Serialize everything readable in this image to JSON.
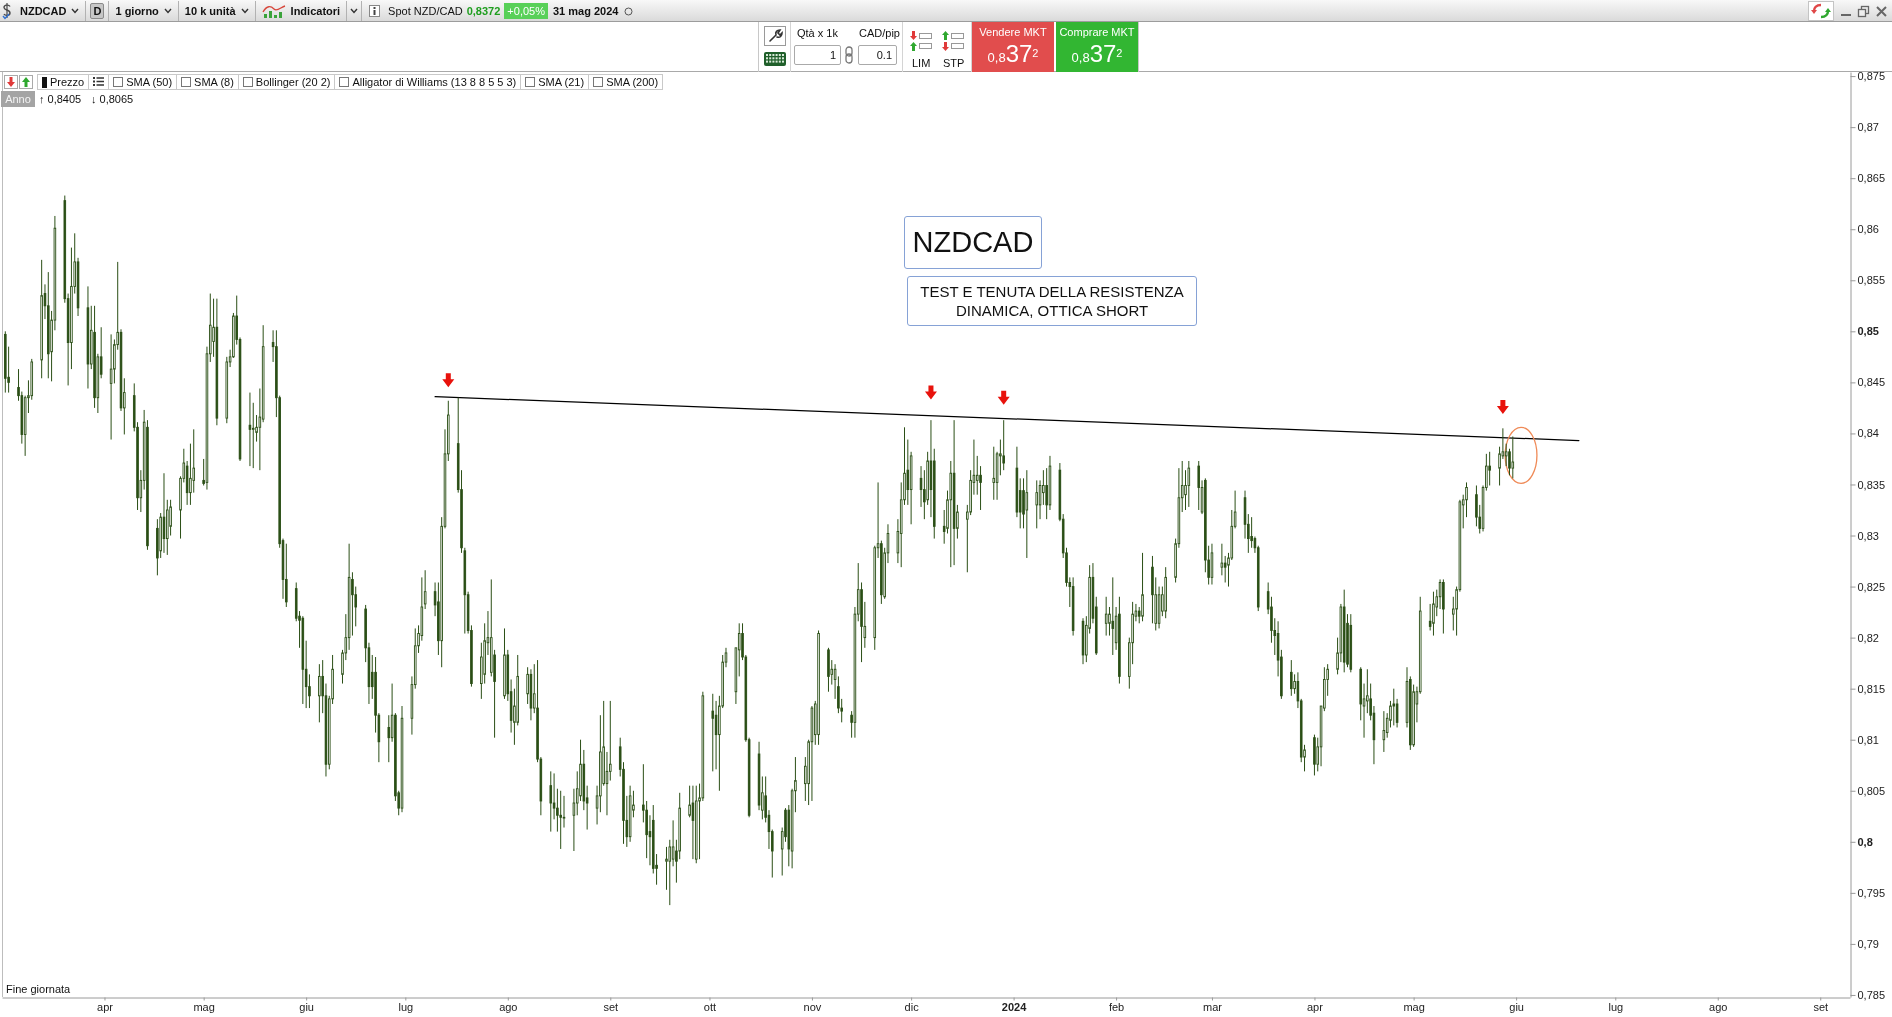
{
  "chart_data": {
    "type": "candlestick",
    "title": "NZDCAD",
    "color": "#2b4f16",
    "annotations": [
      "NZDCAD",
      "D",
      "1 giorno",
      "10 k unità",
      "Indicatori",
      "Spot NZD/CAD",
      "0,8372",
      "+0,05%",
      "31 mag 2024",
      "Qtà x 1k",
      "CAD/pip",
      "1",
      "0.1",
      "LIM",
      "STP",
      "Vendere MKT",
      "0,837$^{2}$",
      "Comprare MKT",
      "0,837$^{2}$",
      "Prezzo",
      "SMA (50)",
      "SMA (8)",
      "Bollinger (20 2)",
      "Alligator di Williams (13 8 8 5 5 3)",
      "SMA (21)",
      "SMA (200)",
      "Anno",
      "↑ 0,8405",
      "↓ 0,8065",
      "TEST E TENUTA DELLA RESISTENZA DINAMICA, OTTICA SHORT",
      "Fine giornata"
    ],
    "x": [
      "2023-03-02",
      "2023-03-03",
      "2023-03-06",
      "2023-03-07",
      "2023-03-08",
      "2023-03-09",
      "2023-03-10",
      "2023-03-13",
      "2023-03-14",
      "2023-03-15",
      "2023-03-16",
      "2023-03-17",
      "2023-03-20",
      "2023-03-21",
      "2023-03-22",
      "2023-03-23",
      "2023-03-24",
      "2023-03-27",
      "2023-03-28",
      "2023-03-29",
      "2023-03-30",
      "2023-03-31",
      "2023-04-03",
      "2023-04-04",
      "2023-04-05",
      "2023-04-06",
      "2023-04-07",
      "2023-04-10",
      "2023-04-11",
      "2023-04-12",
      "2023-04-13",
      "2023-04-14",
      "2023-04-17",
      "2023-04-18",
      "2023-04-19",
      "2023-04-20",
      "2023-04-21",
      "2023-04-24",
      "2023-04-25",
      "2023-04-26",
      "2023-04-27",
      "2023-04-28",
      "2023-05-01",
      "2023-05-02",
      "2023-05-03",
      "2023-05-04",
      "2023-05-05",
      "2023-05-08",
      "2023-05-09",
      "2023-05-10",
      "2023-05-11",
      "2023-05-12",
      "2023-05-15",
      "2023-05-16",
      "2023-05-17",
      "2023-05-18",
      "2023-05-19",
      "2023-05-22",
      "2023-05-23",
      "2023-05-24",
      "2023-05-25",
      "2023-05-26",
      "2023-05-29",
      "2023-05-30",
      "2023-05-31",
      "2023-06-01",
      "2023-06-02",
      "2023-06-05",
      "2023-06-06",
      "2023-06-07",
      "2023-06-08",
      "2023-06-09",
      "2023-06-12",
      "2023-06-13",
      "2023-06-14",
      "2023-06-15",
      "2023-06-16",
      "2023-06-19",
      "2023-06-20",
      "2023-06-21",
      "2023-06-22",
      "2023-06-23",
      "2023-06-26",
      "2023-06-27",
      "2023-06-28",
      "2023-06-29",
      "2023-06-30",
      "2023-07-03",
      "2023-07-04",
      "2023-07-05",
      "2023-07-06",
      "2023-07-07",
      "2023-07-10",
      "2023-07-11",
      "2023-07-12",
      "2023-07-13",
      "2023-07-14",
      "2023-07-17",
      "2023-07-18",
      "2023-07-19",
      "2023-07-20",
      "2023-07-21",
      "2023-07-24",
      "2023-07-25",
      "2023-07-26",
      "2023-07-27",
      "2023-07-28",
      "2023-07-31",
      "2023-08-01",
      "2023-08-02",
      "2023-08-03",
      "2023-08-04",
      "2023-08-07",
      "2023-08-08",
      "2023-08-09",
      "2023-08-10",
      "2023-08-11",
      "2023-08-14",
      "2023-08-15",
      "2023-08-16",
      "2023-08-17",
      "2023-08-18",
      "2023-08-21",
      "2023-08-22",
      "2023-08-23",
      "2023-08-24",
      "2023-08-25",
      "2023-08-28",
      "2023-08-29",
      "2023-08-30",
      "2023-08-31",
      "2023-09-01",
      "2023-09-04",
      "2023-09-05",
      "2023-09-06",
      "2023-09-07",
      "2023-09-08",
      "2023-09-11",
      "2023-09-12",
      "2023-09-13",
      "2023-09-14",
      "2023-09-15",
      "2023-09-18",
      "2023-09-19",
      "2023-09-20",
      "2023-09-21",
      "2023-09-22",
      "2023-09-25",
      "2023-09-26",
      "2023-09-27",
      "2023-09-28",
      "2023-09-29",
      "2023-10-02",
      "2023-10-03",
      "2023-10-04",
      "2023-10-05",
      "2023-10-06",
      "2023-10-09",
      "2023-10-10",
      "2023-10-11",
      "2023-10-12",
      "2023-10-13",
      "2023-10-16",
      "2023-10-17",
      "2023-10-18",
      "2023-10-19",
      "2023-10-20",
      "2023-10-23",
      "2023-10-24",
      "2023-10-25",
      "2023-10-26",
      "2023-10-27",
      "2023-10-30",
      "2023-10-31",
      "2023-11-01",
      "2023-11-02",
      "2023-11-03",
      "2023-11-06",
      "2023-11-07",
      "2023-11-08",
      "2023-11-09",
      "2023-11-10",
      "2023-11-13",
      "2023-11-14",
      "2023-11-15",
      "2023-11-16",
      "2023-11-17",
      "2023-11-20",
      "2023-11-21",
      "2023-11-22",
      "2023-11-23",
      "2023-11-24",
      "2023-11-27",
      "2023-11-28",
      "2023-11-29",
      "2023-11-30",
      "2023-12-01",
      "2023-12-04",
      "2023-12-05",
      "2023-12-06",
      "2023-12-07",
      "2023-12-08",
      "2023-12-11",
      "2023-12-12",
      "2023-12-13",
      "2023-12-14",
      "2023-12-15",
      "2023-12-18",
      "2023-12-19",
      "2023-12-20",
      "2023-12-21",
      "2023-12-22",
      "2023-12-26",
      "2023-12-27",
      "2023-12-28",
      "2023-12-29",
      "2024-01-02",
      "2024-01-03",
      "2024-01-04",
      "2024-01-05",
      "2024-01-08",
      "2024-01-09",
      "2024-01-10",
      "2024-01-11",
      "2024-01-12",
      "2024-01-15",
      "2024-01-16",
      "2024-01-17",
      "2024-01-18",
      "2024-01-19",
      "2024-01-22",
      "2024-01-23",
      "2024-01-24",
      "2024-01-25",
      "2024-01-26",
      "2024-01-29",
      "2024-01-30",
      "2024-01-31",
      "2024-02-01",
      "2024-02-02",
      "2024-02-05",
      "2024-02-06",
      "2024-02-07",
      "2024-02-08",
      "2024-02-09",
      "2024-02-12",
      "2024-02-13",
      "2024-02-14",
      "2024-02-15",
      "2024-02-16",
      "2024-02-19",
      "2024-02-20",
      "2024-02-21",
      "2024-02-22",
      "2024-02-23",
      "2024-02-26",
      "2024-02-27",
      "2024-02-28",
      "2024-02-29",
      "2024-03-01",
      "2024-03-04",
      "2024-03-05",
      "2024-03-06",
      "2024-03-07",
      "2024-03-08",
      "2024-03-11",
      "2024-03-12",
      "2024-03-13",
      "2024-03-14",
      "2024-03-15",
      "2024-03-18",
      "2024-03-19",
      "2024-03-20",
      "2024-03-21",
      "2024-03-22",
      "2024-03-25",
      "2024-03-26",
      "2024-03-27",
      "2024-03-28",
      "2024-03-29",
      "2024-04-01",
      "2024-04-02",
      "2024-04-03",
      "2024-04-04",
      "2024-04-05",
      "2024-04-08",
      "2024-04-09",
      "2024-04-10",
      "2024-04-11",
      "2024-04-12",
      "2024-04-15",
      "2024-04-16",
      "2024-04-17",
      "2024-04-18",
      "2024-04-19",
      "2024-04-22",
      "2024-04-23",
      "2024-04-24",
      "2024-04-25",
      "2024-04-26",
      "2024-04-29",
      "2024-04-30",
      "2024-05-01",
      "2024-05-02",
      "2024-05-03",
      "2024-05-06",
      "2024-05-07",
      "2024-05-08",
      "2024-05-09",
      "2024-05-10",
      "2024-05-13",
      "2024-05-14",
      "2024-05-15",
      "2024-05-16",
      "2024-05-17",
      "2024-05-20",
      "2024-05-21",
      "2024-05-22",
      "2024-05-23",
      "2024-05-24",
      "2024-05-27",
      "2024-05-28",
      "2024-05-29",
      "2024-05-30",
      "2024-05-31"
    ],
    "ohlc": [
      [
        0.8497,
        0.85,
        0.844,
        0.8454
      ],
      [
        0.8455,
        0.8485,
        0.844,
        0.845
      ],
      [
        0.8445,
        0.8463,
        0.8432,
        0.8437
      ],
      [
        0.8437,
        0.8441,
        0.839,
        0.8399
      ],
      [
        0.8399,
        0.8437,
        0.8378,
        0.8435
      ],
      [
        0.8435,
        0.8452,
        0.842,
        0.8437
      ],
      [
        0.8437,
        0.8473,
        0.8433,
        0.847
      ],
      [
        0.8472,
        0.857,
        0.8454,
        0.8535
      ],
      [
        0.8537,
        0.8546,
        0.8512,
        0.8525
      ],
      [
        0.8525,
        0.8558,
        0.8454,
        0.8478
      ],
      [
        0.848,
        0.852,
        0.8451,
        0.8511
      ],
      [
        0.8511,
        0.8613,
        0.8501,
        0.8601
      ],
      [
        0.8628,
        0.8633,
        0.8528,
        0.8532
      ],
      [
        0.8532,
        0.8537,
        0.8447,
        0.8489
      ],
      [
        0.8489,
        0.8582,
        0.8463,
        0.8544
      ],
      [
        0.8544,
        0.8596,
        0.8537,
        0.8568
      ],
      [
        0.8568,
        0.8572,
        0.8515,
        0.8523
      ],
      [
        0.8523,
        0.8544,
        0.8444,
        0.8468
      ],
      [
        0.8468,
        0.8525,
        0.8463,
        0.8501
      ],
      [
        0.8499,
        0.8525,
        0.8425,
        0.8435
      ],
      [
        0.8435,
        0.8478,
        0.842,
        0.8475
      ],
      [
        0.8475,
        0.8504,
        0.8454,
        0.8458
      ],
      [
        0.8449,
        0.8497,
        0.8394,
        0.8463
      ],
      [
        0.8463,
        0.8492,
        0.8449,
        0.8487
      ],
      [
        0.8487,
        0.8568,
        0.8482,
        0.8499
      ],
      [
        0.8499,
        0.8502,
        0.8422,
        0.8425
      ],
      [
        0.8425,
        0.8454,
        0.8399,
        0.844
      ],
      [
        0.8437,
        0.8449,
        0.8402,
        0.8406
      ],
      [
        0.8406,
        0.8411,
        0.8325,
        0.8337
      ],
      [
        0.8337,
        0.8364,
        0.8323,
        0.8354
      ],
      [
        0.8354,
        0.8423,
        0.8345,
        0.8411
      ],
      [
        0.8406,
        0.8413,
        0.8286,
        0.829
      ],
      [
        0.8307,
        0.8316,
        0.8261,
        0.8278
      ],
      [
        0.8285,
        0.8322,
        0.8278,
        0.8318
      ],
      [
        0.8318,
        0.8361,
        0.8283,
        0.8297
      ],
      [
        0.8297,
        0.8335,
        0.8281,
        0.8325
      ],
      [
        0.8309,
        0.8335,
        0.83,
        0.8328
      ],
      [
        0.8325,
        0.8358,
        0.8297,
        0.8356
      ],
      [
        0.8356,
        0.8385,
        0.8352,
        0.8371
      ],
      [
        0.8368,
        0.8373,
        0.833,
        0.8342
      ],
      [
        0.8342,
        0.839,
        0.833,
        0.8356
      ],
      [
        0.8354,
        0.8404,
        0.8342,
        0.8366
      ],
      [
        0.8354,
        0.8375,
        0.8349,
        0.8351
      ],
      [
        0.8352,
        0.8485,
        0.8345,
        0.8478
      ],
      [
        0.8478,
        0.8537,
        0.847,
        0.8506
      ],
      [
        0.849,
        0.8532,
        0.8475,
        0.8504
      ],
      [
        0.8504,
        0.8532,
        0.8408,
        0.8415
      ],
      [
        0.8415,
        0.8475,
        0.841,
        0.847
      ],
      [
        0.847,
        0.8482,
        0.8465,
        0.8475
      ],
      [
        0.8475,
        0.8518,
        0.8474,
        0.8515
      ],
      [
        0.8515,
        0.8535,
        0.8487,
        0.8492
      ],
      [
        0.8492,
        0.8494,
        0.8373,
        0.8375
      ],
      [
        0.8408,
        0.844,
        0.8368,
        0.8404
      ],
      [
        0.8404,
        0.843,
        0.8366,
        0.8405
      ],
      [
        0.8401,
        0.8418,
        0.8392,
        0.8406
      ],
      [
        0.8406,
        0.8444,
        0.8364,
        0.8416
      ],
      [
        0.8414,
        0.8506,
        0.8411,
        0.8485
      ],
      [
        0.8489,
        0.8501,
        0.847,
        0.8485
      ],
      [
        0.8485,
        0.8501,
        0.8416,
        0.8435
      ],
      [
        0.8435,
        0.8437,
        0.8288,
        0.8292
      ],
      [
        0.8295,
        0.8297,
        0.8238,
        0.8257
      ],
      [
        0.8257,
        0.8292,
        0.823,
        0.8235
      ],
      [
        0.8248,
        0.8254,
        0.8216,
        0.8219
      ],
      [
        0.8221,
        0.8226,
        0.819,
        0.8217
      ],
      [
        0.8219,
        0.8221,
        0.8135,
        0.8169
      ],
      [
        0.8169,
        0.8197,
        0.8131,
        0.8152
      ],
      [
        0.8152,
        0.8164,
        0.8131,
        0.8143
      ],
      [
        0.8143,
        0.8174,
        0.8117,
        0.8162
      ],
      [
        0.8162,
        0.8178,
        0.8126,
        0.8143
      ],
      [
        0.8143,
        0.8155,
        0.8064,
        0.8076
      ],
      [
        0.8076,
        0.8143,
        0.8071,
        0.814
      ],
      [
        0.814,
        0.8183,
        0.8135,
        0.8169
      ],
      [
        0.8164,
        0.8188,
        0.8155,
        0.8185
      ],
      [
        0.8185,
        0.8223,
        0.8178,
        0.82
      ],
      [
        0.82,
        0.8292,
        0.8188,
        0.8259
      ],
      [
        0.8257,
        0.8264,
        0.8202,
        0.8242
      ],
      [
        0.8242,
        0.825,
        0.8211,
        0.823
      ],
      [
        0.8228,
        0.8232,
        0.8176,
        0.819
      ],
      [
        0.819,
        0.8195,
        0.8135,
        0.8152
      ],
      [
        0.8166,
        0.8183,
        0.814,
        0.8152
      ],
      [
        0.8166,
        0.8181,
        0.8107,
        0.8124
      ],
      [
        0.8124,
        0.8126,
        0.8078,
        0.8098
      ],
      [
        0.8112,
        0.8124,
        0.8078,
        0.8102
      ],
      [
        0.8102,
        0.8155,
        0.8098,
        0.8124
      ],
      [
        0.8124,
        0.8126,
        0.804,
        0.8045
      ],
      [
        0.8048,
        0.805,
        0.8026,
        0.8033
      ],
      [
        0.8033,
        0.8133,
        0.8029,
        0.8121
      ],
      [
        0.8121,
        0.8162,
        0.8105,
        0.8154
      ],
      [
        0.8154,
        0.8209,
        0.815,
        0.8192
      ],
      [
        0.8192,
        0.8212,
        0.8185,
        0.8204
      ],
      [
        0.8202,
        0.8259,
        0.8197,
        0.823
      ],
      [
        0.8233,
        0.8266,
        0.8228,
        0.8245
      ],
      [
        0.8245,
        0.8254,
        0.8221,
        0.8232
      ],
      [
        0.8235,
        0.8254,
        0.8183,
        0.8197
      ],
      [
        0.8197,
        0.8318,
        0.8171,
        0.8309
      ],
      [
        0.8309,
        0.8404,
        0.8307,
        0.838
      ],
      [
        0.838,
        0.8432,
        0.8373,
        0.8418
      ],
      [
        0.839,
        0.8435,
        0.8342,
        0.8345
      ],
      [
        0.8345,
        0.8364,
        0.8283,
        0.8288
      ],
      [
        0.8285,
        0.8288,
        0.8204,
        0.8242
      ],
      [
        0.8242,
        0.8245,
        0.8204,
        0.8207
      ],
      [
        0.8207,
        0.8212,
        0.8152,
        0.8155
      ],
      [
        0.8155,
        0.8195,
        0.814,
        0.8181
      ],
      [
        0.8164,
        0.8214,
        0.8155,
        0.8197
      ],
      [
        0.8195,
        0.8226,
        0.8183,
        0.82
      ],
      [
        0.8166,
        0.8257,
        0.8162,
        0.82
      ],
      [
        0.8183,
        0.8188,
        0.8102,
        0.8157
      ],
      [
        0.8143,
        0.8209,
        0.814,
        0.8183
      ],
      [
        0.8183,
        0.8188,
        0.8138,
        0.8145
      ],
      [
        0.8147,
        0.8159,
        0.8107,
        0.8119
      ],
      [
        0.8117,
        0.815,
        0.8095,
        0.8133
      ],
      [
        0.8117,
        0.8183,
        0.8114,
        0.8162
      ],
      [
        0.8145,
        0.8171,
        0.8135,
        0.8164
      ],
      [
        0.8164,
        0.8169,
        0.8119,
        0.8131
      ],
      [
        0.8131,
        0.8174,
        0.8126,
        0.8145
      ],
      [
        0.8131,
        0.8178,
        0.8078,
        0.8081
      ],
      [
        0.8081,
        0.8083,
        0.8026,
        0.804
      ],
      [
        0.8055,
        0.8069,
        0.801,
        0.8038
      ],
      [
        0.8038,
        0.8067,
        0.8022,
        0.8033
      ],
      [
        0.8033,
        0.8052,
        0.801,
        0.8026
      ],
      [
        0.8026,
        0.805,
        0.7993,
        0.8024
      ],
      [
        0.8024,
        0.8045,
        0.8014,
        0.8024
      ],
      [
        0.8026,
        0.8052,
        0.7991,
        0.8038
      ],
      [
        0.8038,
        0.8069,
        0.8026,
        0.8052
      ],
      [
        0.8045,
        0.81,
        0.804,
        0.8076
      ],
      [
        0.8076,
        0.809,
        0.8031,
        0.804
      ],
      [
        0.8043,
        0.8055,
        0.8012,
        0.8038
      ],
      [
        0.8033,
        0.8055,
        0.8017,
        0.8045
      ],
      [
        0.8045,
        0.8124,
        0.8029,
        0.8088
      ],
      [
        0.8057,
        0.8138,
        0.8055,
        0.8093
      ],
      [
        0.8057,
        0.8088,
        0.8026,
        0.8069
      ],
      [
        0.8069,
        0.8138,
        0.806,
        0.8076
      ],
      [
        0.8093,
        0.8102,
        0.8064,
        0.8071
      ],
      [
        0.8071,
        0.8078,
        0.7998,
        0.8021
      ],
      [
        0.8021,
        0.8045,
        0.7995,
        0.8005
      ],
      [
        0.8005,
        0.8055,
        0.8,
        0.8045
      ],
      [
        0.8031,
        0.805,
        0.8024,
        0.8036
      ],
      [
        0.8036,
        0.8076,
        0.8019,
        0.8031
      ],
      [
        0.8031,
        0.804,
        0.7984,
        0.8007
      ],
      [
        0.801,
        0.8026,
        0.7977,
        0.8005
      ],
      [
        0.8021,
        0.8036,
        0.7969,
        0.7974
      ],
      [
        0.7977,
        0.7988,
        0.7958,
        0.7974
      ],
      [
        0.7981,
        0.7995,
        0.7953,
        0.7983
      ],
      [
        0.7981,
        0.8002,
        0.7938,
        0.7995
      ],
      [
        0.7983,
        0.8021,
        0.7976,
        0.7995
      ],
      [
        0.7991,
        0.8002,
        0.796,
        0.7981
      ],
      [
        0.7991,
        0.8048,
        0.7983,
        0.8033
      ],
      [
        0.8026,
        0.8055,
        0.8024,
        0.8036
      ],
      [
        0.8038,
        0.8055,
        0.7983,
        0.8021
      ],
      [
        0.7983,
        0.8055,
        0.7979,
        0.804
      ],
      [
        0.804,
        0.8057,
        0.7983,
        0.8043
      ],
      [
        0.8043,
        0.8147,
        0.804,
        0.8143
      ],
      [
        0.8128,
        0.8145,
        0.8069,
        0.8121
      ],
      [
        0.8124,
        0.8138,
        0.8071,
        0.8105
      ],
      [
        0.8105,
        0.8143,
        0.805,
        0.8133
      ],
      [
        0.8133,
        0.8183,
        0.8131,
        0.8176
      ],
      [
        0.8176,
        0.819,
        0.8171,
        0.8185
      ],
      [
        0.8147,
        0.819,
        0.8135,
        0.819
      ],
      [
        0.8188,
        0.8214,
        0.8162,
        0.8204
      ],
      [
        0.8204,
        0.8214,
        0.8178,
        0.8181
      ],
      [
        0.8181,
        0.8183,
        0.8098,
        0.81
      ],
      [
        0.81,
        0.8102,
        0.8024,
        0.8026
      ],
      [
        0.8086,
        0.8098,
        0.8031,
        0.8036
      ],
      [
        0.8031,
        0.8064,
        0.8022,
        0.8048
      ],
      [
        0.8045,
        0.8064,
        0.8019,
        0.8024
      ],
      [
        0.8026,
        0.8031,
        0.7993,
        0.801
      ],
      [
        0.801,
        0.8012,
        0.7965,
        0.7991
      ],
      [
        0.7993,
        0.8014,
        0.7967,
        0.801
      ],
      [
        0.8031,
        0.8033,
        0.8,
        0.8005
      ],
      [
        0.8031,
        0.8036,
        0.7976,
        0.7993
      ],
      [
        0.7991,
        0.8052,
        0.7974,
        0.805
      ],
      [
        0.805,
        0.8083,
        0.8029,
        0.806
      ],
      [
        0.8057,
        0.8083,
        0.804,
        0.8074
      ],
      [
        0.8057,
        0.81,
        0.8036,
        0.8098
      ],
      [
        0.8098,
        0.8133,
        0.804,
        0.8131
      ],
      [
        0.8105,
        0.8138,
        0.8095,
        0.8135
      ],
      [
        0.8105,
        0.8207,
        0.8095,
        0.8204
      ],
      [
        0.8188,
        0.819,
        0.8147,
        0.8162
      ],
      [
        0.8164,
        0.8178,
        0.8154,
        0.8169
      ],
      [
        0.8159,
        0.8174,
        0.814,
        0.8169
      ],
      [
        0.8152,
        0.8162,
        0.8126,
        0.8131
      ],
      [
        0.8131,
        0.814,
        0.8117,
        0.8128
      ],
      [
        0.8124,
        0.8128,
        0.8102,
        0.8117
      ],
      [
        0.8117,
        0.823,
        0.8102,
        0.8223
      ],
      [
        0.8223,
        0.8273,
        0.8216,
        0.8247
      ],
      [
        0.8247,
        0.8254,
        0.8176,
        0.8211
      ],
      [
        0.82,
        0.8235,
        0.819,
        0.8211
      ],
      [
        0.82,
        0.829,
        0.8188,
        0.8288
      ],
      [
        0.8288,
        0.8352,
        0.8278,
        0.8292
      ],
      [
        0.8292,
        0.8295,
        0.8233,
        0.8242
      ],
      [
        0.824,
        0.8288,
        0.8238,
        0.8283
      ],
      [
        0.8283,
        0.8311,
        0.8273,
        0.8302
      ],
      [
        0.8283,
        0.8316,
        0.8273,
        0.8304
      ],
      [
        0.8302,
        0.8352,
        0.8269,
        0.8335
      ],
      [
        0.8335,
        0.8406,
        0.833,
        0.8361
      ],
      [
        0.8364,
        0.8394,
        0.833,
        0.8345
      ],
      [
        0.8345,
        0.8382,
        0.8311,
        0.8378
      ],
      [
        0.8356,
        0.8368,
        0.8328,
        0.8345
      ],
      [
        0.8345,
        0.8364,
        0.8316,
        0.8333
      ],
      [
        0.8335,
        0.8382,
        0.833,
        0.8373
      ],
      [
        0.8373,
        0.8413,
        0.8318,
        0.8345
      ],
      [
        0.8373,
        0.8385,
        0.8297,
        0.8309
      ],
      [
        0.8309,
        0.8325,
        0.8292,
        0.8304
      ],
      [
        0.8307,
        0.8344,
        0.8302,
        0.8335
      ],
      [
        0.8335,
        0.8373,
        0.8269,
        0.8361
      ],
      [
        0.8361,
        0.8413,
        0.8271,
        0.8307
      ],
      [
        0.8307,
        0.833,
        0.8297,
        0.8323
      ],
      [
        0.8316,
        0.833,
        0.8264,
        0.8323
      ],
      [
        0.8323,
        0.8364,
        0.832,
        0.8354
      ],
      [
        0.8352,
        0.8394,
        0.834,
        0.8359
      ],
      [
        0.8354,
        0.8378,
        0.834,
        0.8359
      ],
      [
        0.8359,
        0.8368,
        0.8325,
        0.8352
      ],
      [
        0.8352,
        0.8387,
        0.8335,
        0.8356
      ],
      [
        0.8352,
        0.8382,
        0.8335,
        0.838
      ],
      [
        0.8378,
        0.8394,
        0.8359,
        0.838
      ],
      [
        0.8378,
        0.8413,
        0.8364,
        0.8371
      ],
      [
        0.8366,
        0.8387,
        0.8318,
        0.8323
      ],
      [
        0.8344,
        0.8356,
        0.8307,
        0.8323
      ],
      [
        0.8344,
        0.8356,
        0.8307,
        0.8321
      ],
      [
        0.8325,
        0.8364,
        0.8278,
        0.8342
      ],
      [
        0.833,
        0.8354,
        0.8307,
        0.8342
      ],
      [
        0.833,
        0.8354,
        0.8316,
        0.8349
      ],
      [
        0.8342,
        0.8364,
        0.833,
        0.8349
      ],
      [
        0.8349,
        0.8366,
        0.8316,
        0.833
      ],
      [
        0.833,
        0.8378,
        0.8325,
        0.8368
      ],
      [
        0.8364,
        0.8371,
        0.8314,
        0.8316
      ],
      [
        0.8316,
        0.8321,
        0.8278,
        0.8283
      ],
      [
        0.8283,
        0.8288,
        0.825,
        0.8254
      ],
      [
        0.8254,
        0.8259,
        0.823,
        0.825
      ],
      [
        0.825,
        0.8259,
        0.8202,
        0.8207
      ],
      [
        0.8216,
        0.8219,
        0.8174,
        0.8183
      ],
      [
        0.8183,
        0.8221,
        0.8176,
        0.8212
      ],
      [
        0.8209,
        0.8271,
        0.8204,
        0.8259
      ],
      [
        0.8259,
        0.8273,
        0.8214,
        0.8219
      ],
      [
        0.823,
        0.824,
        0.8183,
        0.8185
      ],
      [
        0.8214,
        0.824,
        0.8202,
        0.8223
      ],
      [
        0.8214,
        0.823,
        0.8202,
        0.8223
      ],
      [
        0.8216,
        0.8259,
        0.8183,
        0.8209
      ],
      [
        0.8195,
        0.823,
        0.8188,
        0.8221
      ],
      [
        0.8223,
        0.824,
        0.8155,
        0.8162
      ],
      [
        0.8162,
        0.82,
        0.815,
        0.8195
      ],
      [
        0.8195,
        0.8235,
        0.8174,
        0.8223
      ],
      [
        0.8221,
        0.8233,
        0.8216,
        0.8226
      ],
      [
        0.8226,
        0.823,
        0.8214,
        0.8221
      ],
      [
        0.8221,
        0.8283,
        0.8216,
        0.8242
      ],
      [
        0.8269,
        0.828,
        0.8214,
        0.8242
      ],
      [
        0.8214,
        0.8259,
        0.8207,
        0.8242
      ],
      [
        0.8214,
        0.825,
        0.8209,
        0.8242
      ],
      [
        0.8226,
        0.825,
        0.8221,
        0.8242
      ],
      [
        0.8226,
        0.8269,
        0.8219,
        0.8259
      ],
      [
        0.8259,
        0.8297,
        0.8254,
        0.8292
      ],
      [
        0.8292,
        0.8366,
        0.8288,
        0.8337
      ],
      [
        0.8337,
        0.8373,
        0.8323,
        0.8349
      ],
      [
        0.834,
        0.8364,
        0.8325,
        0.8349
      ],
      [
        0.8349,
        0.8373,
        0.8328,
        0.8366
      ],
      [
        0.8368,
        0.8373,
        0.8325,
        0.8347
      ],
      [
        0.8323,
        0.8354,
        0.8321,
        0.8347
      ],
      [
        0.8354,
        0.8356,
        0.8264,
        0.8276
      ],
      [
        0.8276,
        0.829,
        0.8252,
        0.8259
      ],
      [
        0.8259,
        0.8292,
        0.8252,
        0.8283
      ],
      [
        0.8269,
        0.8292,
        0.8261,
        0.8273
      ],
      [
        0.8273,
        0.828,
        0.8254,
        0.8269
      ],
      [
        0.8271,
        0.8283,
        0.825,
        0.8278
      ],
      [
        0.8278,
        0.8325,
        0.8276,
        0.8309
      ],
      [
        0.8309,
        0.8344,
        0.8307,
        0.8323
      ],
      [
        0.8337,
        0.8344,
        0.8297,
        0.8311
      ],
      [
        0.8311,
        0.8321,
        0.8283,
        0.8297
      ],
      [
        0.8299,
        0.8318,
        0.8288,
        0.8295
      ],
      [
        0.8297,
        0.8299,
        0.8283,
        0.8288
      ],
      [
        0.8288,
        0.829,
        0.8226,
        0.823
      ],
      [
        0.8245,
        0.8254,
        0.8223,
        0.8228
      ],
      [
        0.823,
        0.824,
        0.8195,
        0.8207
      ],
      [
        0.8207,
        0.8219,
        0.8183,
        0.8202
      ],
      [
        0.8204,
        0.8216,
        0.8162,
        0.8178
      ],
      [
        0.8181,
        0.8188,
        0.814,
        0.8143
      ],
      [
        0.8166,
        0.8178,
        0.8143,
        0.815
      ],
      [
        0.815,
        0.8164,
        0.8145,
        0.8157
      ],
      [
        0.8157,
        0.8166,
        0.8131,
        0.8138
      ],
      [
        0.8138,
        0.814,
        0.8078,
        0.8083
      ],
      [
        0.8083,
        0.8095,
        0.8069,
        0.809
      ],
      [
        0.8102,
        0.8105,
        0.8065,
        0.8076
      ],
      [
        0.8076,
        0.8102,
        0.8069,
        0.8093
      ],
      [
        0.8093,
        0.8133,
        0.8074,
        0.8133
      ],
      [
        0.8131,
        0.8171,
        0.8128,
        0.8159
      ],
      [
        0.8159,
        0.8174,
        0.8143,
        0.8169
      ],
      [
        0.8169,
        0.82,
        0.8164,
        0.8185
      ],
      [
        0.8185,
        0.8233,
        0.8176,
        0.823
      ],
      [
        0.823,
        0.8247,
        0.8166,
        0.8176
      ],
      [
        0.8214,
        0.8223,
        0.8171,
        0.8174
      ],
      [
        0.8212,
        0.8223,
        0.8166,
        0.8169
      ],
      [
        0.8169,
        0.8171,
        0.8119,
        0.8135
      ],
      [
        0.8133,
        0.8155,
        0.8102,
        0.814
      ],
      [
        0.8138,
        0.8169,
        0.8126,
        0.8143
      ],
      [
        0.814,
        0.8155,
        0.8119,
        0.8124
      ],
      [
        0.8126,
        0.8133,
        0.8076,
        0.81
      ],
      [
        0.81,
        0.8128,
        0.8088,
        0.8109
      ],
      [
        0.8107,
        0.8126,
        0.8102,
        0.8121
      ],
      [
        0.8119,
        0.8138,
        0.8112,
        0.8133
      ],
      [
        0.8135,
        0.815,
        0.8114,
        0.8133
      ],
      [
        0.8135,
        0.814,
        0.8112,
        0.8117
      ],
      [
        0.8117,
        0.8171,
        0.8112,
        0.8157
      ],
      [
        0.8159,
        0.8162,
        0.809,
        0.8095
      ],
      [
        0.8095,
        0.8154,
        0.8093,
        0.8147
      ],
      [
        0.8135,
        0.8152,
        0.8117,
        0.8147
      ],
      [
        0.8147,
        0.824,
        0.8145,
        0.8226
      ],
      [
        0.8216,
        0.8233,
        0.8207,
        0.8211
      ],
      [
        0.8214,
        0.8245,
        0.8202,
        0.8233
      ],
      [
        0.823,
        0.8247,
        0.8221,
        0.824
      ],
      [
        0.824,
        0.8257,
        0.8228,
        0.8254
      ],
      [
        0.8254,
        0.8257,
        0.8204,
        0.8228
      ],
      [
        0.8223,
        0.824,
        0.8207,
        0.8228
      ],
      [
        0.8228,
        0.825,
        0.8202,
        0.8247
      ],
      [
        0.8247,
        0.8335,
        0.8245,
        0.8333
      ],
      [
        0.833,
        0.834,
        0.8307,
        0.8335
      ],
      [
        0.8335,
        0.8352,
        0.8318,
        0.8347
      ],
      [
        0.834,
        0.8349,
        0.8309,
        0.8318
      ],
      [
        0.8318,
        0.833,
        0.8302,
        0.8307
      ],
      [
        0.8307,
        0.8349,
        0.8304,
        0.8347
      ],
      [
        0.8347,
        0.838,
        0.8344,
        0.8368
      ],
      [
        0.8368,
        0.8382,
        0.8349,
        0.8364
      ],
      [
        0.8366,
        0.8387,
        0.8349,
        0.838
      ],
      [
        0.8378,
        0.8405,
        0.8375,
        0.8382
      ],
      [
        0.8378,
        0.839,
        0.8368,
        0.8382
      ],
      [
        0.8382,
        0.8385,
        0.8359,
        0.8366
      ],
      [
        0.8366,
        0.8397,
        0.8356,
        0.8372
      ]
    ],
    "series": [
      {
        "type": "line",
        "color": "#000000",
        "x": [
          "2023-07-10",
          "2024-06-20"
        ],
        "values": [
          0.8436,
          0.8393
        ]
      },
      {
        "type": "scatter",
        "color": "#e8120c",
        "marker": "triangle",
        "x": [
          "2023-07-14",
          "2023-12-07",
          "2023-12-29",
          "2024-05-28"
        ],
        "values": [
          0.8451,
          0.8439,
          0.8434,
          0.8425
        ]
      }
    ],
    "xlim": [
      "2023-03-01",
      "2024-09-10"
    ],
    "ylim": [
      0.7848,
      0.8754
    ],
    "xticks": [
      {
        "value": "2023-04",
        "label": "apr"
      },
      {
        "value": "2023-05",
        "label": "mag"
      },
      {
        "value": "2023-06",
        "label": "giu"
      },
      {
        "value": "2023-07",
        "label": "lug"
      },
      {
        "value": "2023-08",
        "label": "ago"
      },
      {
        "value": "2023-09",
        "label": "set"
      },
      {
        "value": "2023-10",
        "label": "ott"
      },
      {
        "value": "2023-11",
        "label": "nov"
      },
      {
        "value": "2023-12",
        "label": "dic"
      },
      {
        "value": "2024-01",
        "label": "2024"
      },
      {
        "value": "2024-02",
        "label": "feb"
      },
      {
        "value": "2024-03",
        "label": "mar"
      },
      {
        "value": "2024-04",
        "label": "apr"
      },
      {
        "value": "2024-05",
        "label": "mag"
      },
      {
        "value": "2024-06",
        "label": "giu"
      },
      {
        "value": "2024-07",
        "label": "lug"
      },
      {
        "value": "2024-08",
        "label": "ago"
      },
      {
        "value": "2024-09",
        "label": "set"
      }
    ],
    "yticks": [
      {
        "value": 0.785,
        "label": "0,785"
      },
      {
        "value": 0.79,
        "label": "0,79"
      },
      {
        "value": 0.795,
        "label": "0,795"
      },
      {
        "value": 0.8,
        "label": "0,8"
      },
      {
        "value": 0.805,
        "label": "0,805"
      },
      {
        "value": 0.81,
        "label": "0,81"
      },
      {
        "value": 0.815,
        "label": "0,815"
      },
      {
        "value": 0.82,
        "label": "0,82"
      },
      {
        "value": 0.825,
        "label": "0,825"
      },
      {
        "value": 0.83,
        "label": "0,83"
      },
      {
        "value": 0.835,
        "label": "0,835"
      },
      {
        "value": 0.84,
        "label": "0,84"
      },
      {
        "value": 0.845,
        "label": "0,845"
      },
      {
        "value": 0.85,
        "label": "0,85"
      },
      {
        "value": 0.855,
        "label": "0,855"
      },
      {
        "value": 0.86,
        "label": "0,86"
      },
      {
        "value": 0.865,
        "label": "0,865"
      },
      {
        "value": 0.87,
        "label": "0,87"
      },
      {
        "value": 0.875,
        "label": "0,875"
      }
    ]
  }
}
